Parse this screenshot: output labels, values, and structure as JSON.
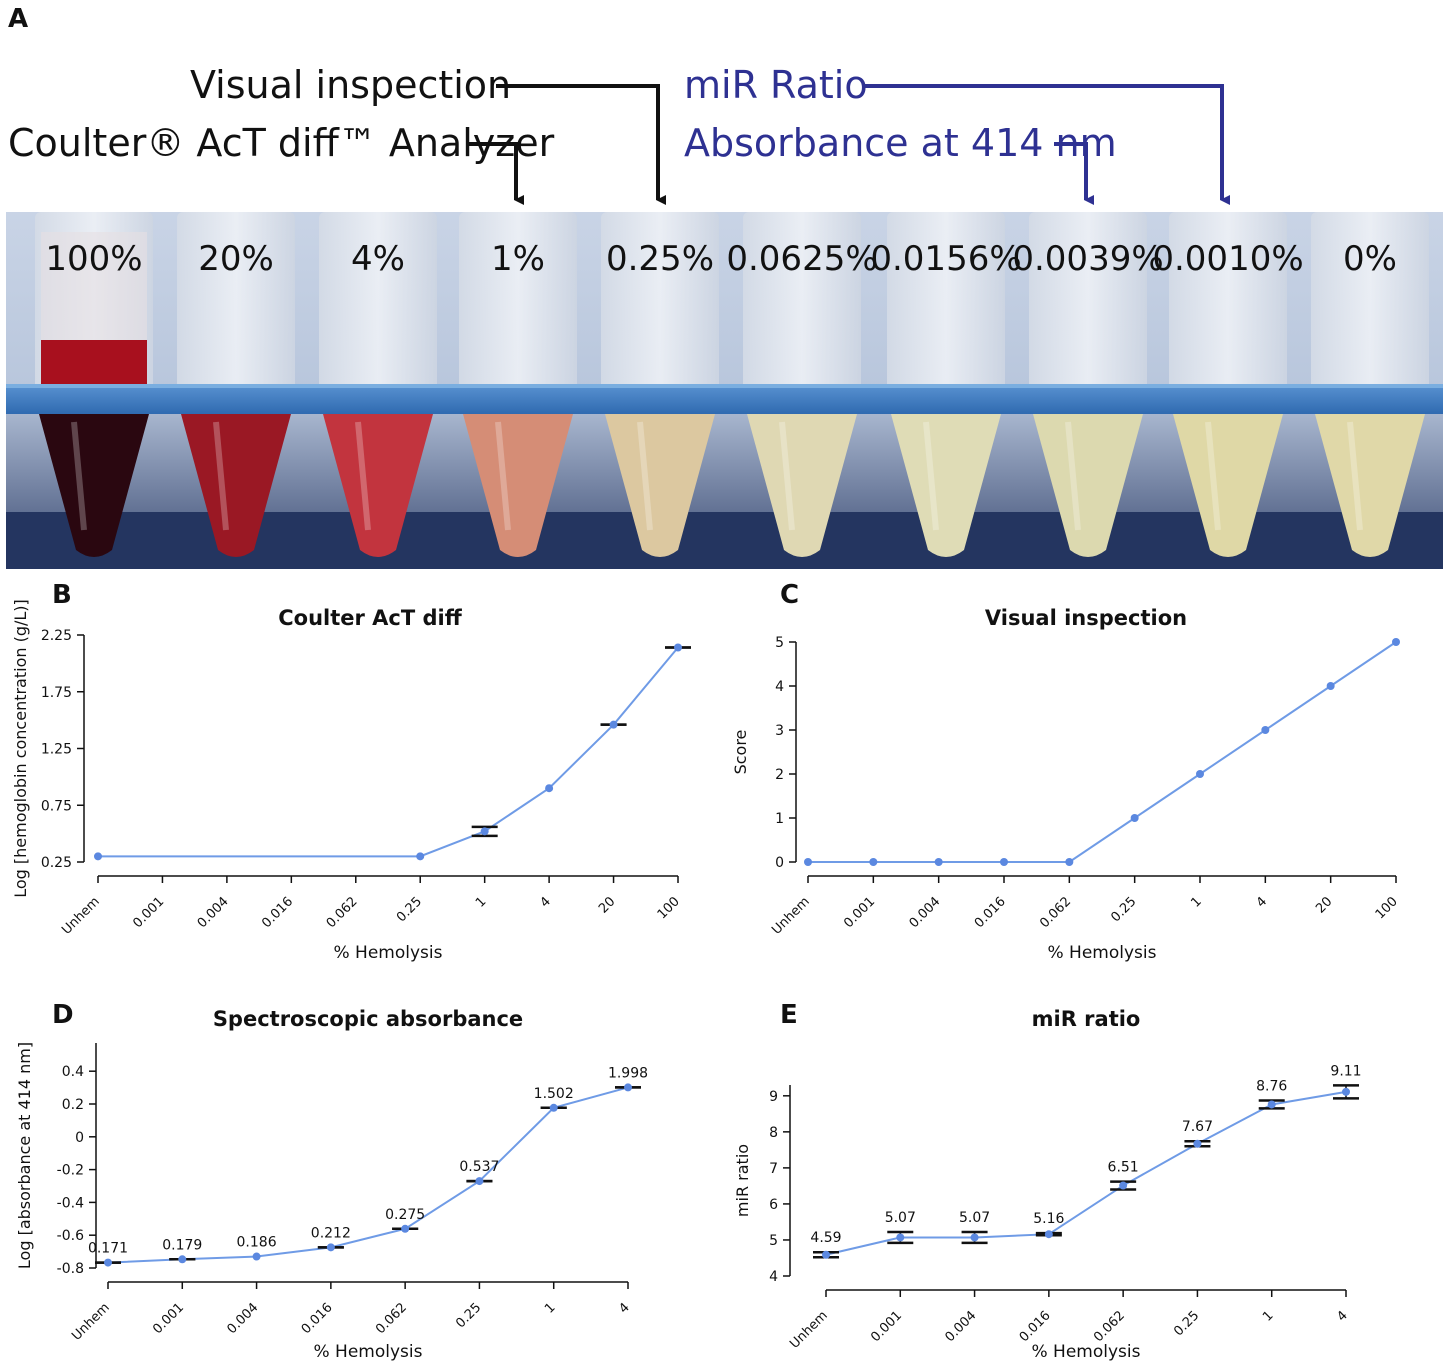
{
  "panels": {
    "a": "A",
    "b": "B",
    "c": "C",
    "d": "D",
    "e": "E"
  },
  "method_labels": {
    "visual": "Visual inspection",
    "coulter": "Coulter® AcT diff™ Analyzer",
    "mir": "miR Ratio",
    "absorbance": "Absorbance at 414 nm"
  },
  "colors": {
    "line": "#6f9be6",
    "dot": "#5b88e0",
    "bar": "#111111",
    "blue_label": "#2e3192",
    "rack": "#3f7ec4"
  },
  "tubes": [
    {
      "label": "100%",
      "liquid": "#2a0710",
      "top": "#a8101e"
    },
    {
      "label": "20%",
      "liquid": "#9a1824",
      "top": "#b9202c"
    },
    {
      "label": "4%",
      "liquid": "#c2343e",
      "top": "#d45560"
    },
    {
      "label": "1%",
      "liquid": "#d58d76",
      "top": "#e0b0a0"
    },
    {
      "label": "0.25%",
      "liquid": "#dcc8a0",
      "top": "#e6dcc4"
    },
    {
      "label": "0.0625%",
      "liquid": "#dfd8b3",
      "top": "#e9e6d0"
    },
    {
      "label": "0.0156%",
      "liquid": "#dfdcb6",
      "top": "#eae8d2"
    },
    {
      "label": "0.0039%",
      "liquid": "#dcd9af",
      "top": "#e8e6cf"
    },
    {
      "label": "0.0010%",
      "liquid": "#dfd8a6",
      "top": "#eae5c9"
    },
    {
      "label": "0%",
      "liquid": "#e0d8a8",
      "top": "#ebe6cb"
    }
  ],
  "chart_data": [
    {
      "id": "B",
      "type": "line",
      "title": "Coulter AcT diff",
      "xlabel": "% Hemolysis",
      "ylabel": "Log [hemoglobin concentration (g/L)]",
      "categories": [
        "Unhem",
        "0.001",
        "0.004",
        "0.016",
        "0.062",
        "0.25",
        "1",
        "4",
        "20",
        "100"
      ],
      "values": [
        0.3,
        null,
        null,
        null,
        null,
        0.3,
        0.52,
        0.9,
        1.46,
        2.14
      ],
      "error_bars": [
        null,
        null,
        null,
        null,
        null,
        null,
        [
          0.48,
          0.56
        ],
        null,
        [
          1.46,
          1.46
        ],
        [
          2.14,
          2.14
        ]
      ],
      "ylim": [
        0.25,
        2.25
      ],
      "yticks": [
        "0.25",
        "0.75",
        "1.25",
        "1.75",
        "2.25"
      ],
      "ytick_values": [
        0.25,
        0.75,
        1.25,
        1.75,
        2.25
      ]
    },
    {
      "id": "C",
      "type": "line",
      "title": "Visual inspection",
      "xlabel": "% Hemolysis",
      "ylabel": "Score",
      "categories": [
        "Unhem",
        "0.001",
        "0.004",
        "0.016",
        "0.062",
        "0.25",
        "1",
        "4",
        "20",
        "100"
      ],
      "values": [
        0,
        0,
        0,
        0,
        0,
        1,
        2,
        3,
        4,
        5
      ],
      "ylim": [
        0,
        5
      ],
      "yticks": [
        "0",
        "1",
        "2",
        "3",
        "4",
        "5"
      ],
      "ytick_values": [
        0,
        1,
        2,
        3,
        4,
        5
      ]
    },
    {
      "id": "D",
      "type": "line",
      "title": "Spectroscopic absorbance",
      "xlabel": "% Hemolysis",
      "ylabel": "Log [absorbance at 414 nm]",
      "categories": [
        "Unhem",
        "0.001",
        "0.004",
        "0.016",
        "0.062",
        "0.25",
        "1",
        "4"
      ],
      "values": [
        -0.767,
        -0.747,
        -0.73,
        -0.674,
        -0.561,
        -0.27,
        0.177,
        0.301
      ],
      "error_bars": [
        [
          -0.767,
          -0.767
        ],
        [
          -0.747,
          -0.747
        ],
        null,
        [
          -0.674,
          -0.674
        ],
        [
          -0.561,
          -0.561
        ],
        [
          -0.27,
          -0.27
        ],
        [
          0.177,
          0.177
        ],
        [
          0.301,
          0.301
        ]
      ],
      "data_labels": [
        "0.171",
        "0.179",
        "0.186",
        "0.212",
        "0.275",
        "0.537",
        "1.502",
        "1.998"
      ],
      "ylim": [
        -0.8,
        0.45
      ],
      "yticks": [
        "-0.8",
        "-0.6",
        "-0.4",
        "-0.2",
        "0",
        "0.2",
        "0.4"
      ],
      "ytick_values": [
        -0.8,
        -0.6,
        -0.4,
        -0.2,
        0,
        0.2,
        0.4
      ]
    },
    {
      "id": "E",
      "type": "line",
      "title": "miR ratio",
      "xlabel": "% Hemolysis",
      "ylabel": "miR ratio",
      "categories": [
        "Unhem",
        "0.001",
        "0.004",
        "0.016",
        "0.062",
        "0.25",
        "1",
        "4"
      ],
      "values": [
        4.59,
        5.07,
        5.07,
        5.16,
        6.51,
        7.67,
        8.76,
        9.11
      ],
      "error_bars": [
        [
          4.52,
          4.66
        ],
        [
          4.92,
          5.22
        ],
        [
          4.92,
          5.22
        ],
        [
          5.13,
          5.19
        ],
        [
          6.4,
          6.62
        ],
        [
          7.6,
          7.74
        ],
        [
          8.65,
          8.87
        ],
        [
          8.93,
          9.29
        ]
      ],
      "data_labels": [
        "4.59",
        "5.07",
        "5.07",
        "5.16",
        "6.51",
        "7.67",
        "8.76",
        "9.11"
      ],
      "ylim": [
        4,
        9.3
      ],
      "yticks": [
        "4",
        "5",
        "6",
        "7",
        "8",
        "9"
      ],
      "ytick_values": [
        4,
        5,
        6,
        7,
        8,
        9
      ]
    }
  ]
}
